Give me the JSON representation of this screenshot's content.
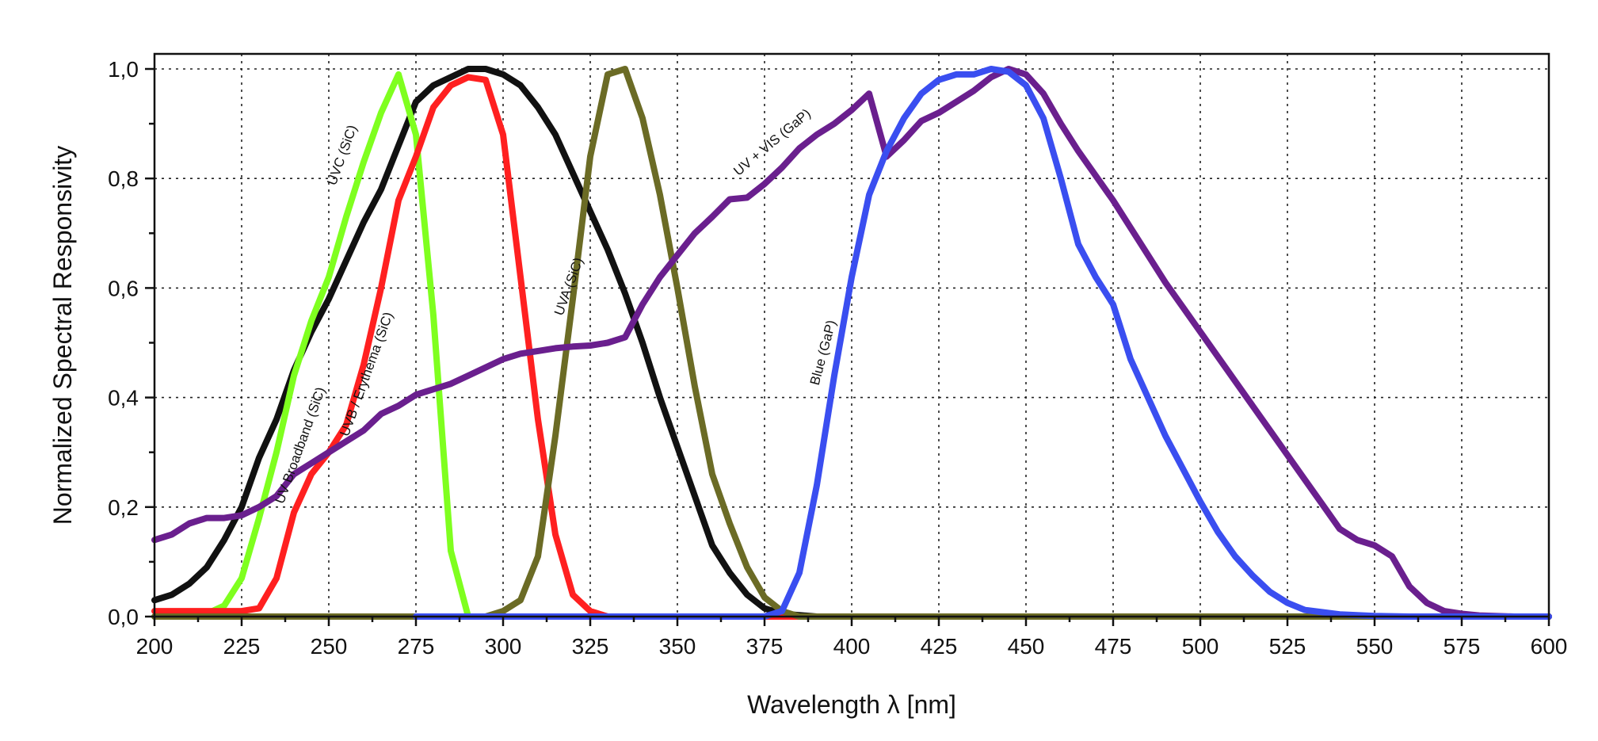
{
  "chart_data": {
    "type": "line",
    "xlabel": "Wavelength λ [nm]",
    "ylabel": "Normalized Spectral Responsivity",
    "xlim": [
      200,
      600
    ],
    "ylim": [
      0,
      1
    ],
    "x_ticks": [
      200,
      225,
      250,
      275,
      300,
      325,
      350,
      375,
      400,
      425,
      450,
      475,
      500,
      525,
      550,
      575,
      600
    ],
    "y_ticks": [
      0,
      0.2,
      0.4,
      0.6,
      0.8,
      1.0
    ],
    "y_tick_labels": [
      "0,0",
      "0,2",
      "0,4",
      "0,6",
      "0,8",
      "1,0"
    ],
    "grid": true,
    "series": [
      {
        "name": "UV Broadband (SiC)",
        "color": "#111111",
        "label_at": [
          243,
          0.31
        ],
        "label_angle": -70,
        "points": [
          [
            200,
            0.03
          ],
          [
            205,
            0.04
          ],
          [
            210,
            0.06
          ],
          [
            215,
            0.09
          ],
          [
            220,
            0.14
          ],
          [
            225,
            0.2
          ],
          [
            230,
            0.29
          ],
          [
            235,
            0.36
          ],
          [
            240,
            0.45
          ],
          [
            245,
            0.52
          ],
          [
            250,
            0.58
          ],
          [
            255,
            0.65
          ],
          [
            260,
            0.72
          ],
          [
            265,
            0.78
          ],
          [
            270,
            0.86
          ],
          [
            275,
            0.94
          ],
          [
            280,
            0.97
          ],
          [
            285,
            0.985
          ],
          [
            290,
            1.0
          ],
          [
            295,
            1.0
          ],
          [
            300,
            0.99
          ],
          [
            305,
            0.97
          ],
          [
            310,
            0.93
          ],
          [
            315,
            0.88
          ],
          [
            320,
            0.81
          ],
          [
            325,
            0.74
          ],
          [
            330,
            0.67
          ],
          [
            335,
            0.59
          ],
          [
            340,
            0.5
          ],
          [
            345,
            0.4
          ],
          [
            350,
            0.31
          ],
          [
            355,
            0.22
          ],
          [
            360,
            0.13
          ],
          [
            365,
            0.08
          ],
          [
            370,
            0.04
          ],
          [
            375,
            0.015
          ],
          [
            380,
            0.005
          ],
          [
            390,
            0.0
          ],
          [
            400,
            0.0
          ],
          [
            600,
            0.0
          ]
        ]
      },
      {
        "name": "UVC (SiC)",
        "color": "#7fff1f",
        "label_at": [
          255,
          0.84
        ],
        "label_angle": -70,
        "points": [
          [
            200,
            0.0
          ],
          [
            210,
            0.0
          ],
          [
            215,
            0.005
          ],
          [
            220,
            0.02
          ],
          [
            225,
            0.07
          ],
          [
            230,
            0.18
          ],
          [
            235,
            0.3
          ],
          [
            240,
            0.44
          ],
          [
            245,
            0.54
          ],
          [
            250,
            0.62
          ],
          [
            255,
            0.73
          ],
          [
            260,
            0.83
          ],
          [
            265,
            0.92
          ],
          [
            270,
            0.99
          ],
          [
            275,
            0.88
          ],
          [
            280,
            0.55
          ],
          [
            285,
            0.12
          ],
          [
            290,
            0.0
          ],
          [
            295,
            0.0
          ],
          [
            600,
            0.0
          ]
        ]
      },
      {
        "name": "UVB / Erythema (SiC)",
        "color": "#ff2020",
        "label_at": [
          262,
          0.44
        ],
        "label_angle": -70,
        "points": [
          [
            200,
            0.01
          ],
          [
            225,
            0.01
          ],
          [
            230,
            0.015
          ],
          [
            235,
            0.07
          ],
          [
            240,
            0.19
          ],
          [
            245,
            0.26
          ],
          [
            250,
            0.3
          ],
          [
            255,
            0.35
          ],
          [
            260,
            0.46
          ],
          [
            265,
            0.6
          ],
          [
            270,
            0.76
          ],
          [
            275,
            0.84
          ],
          [
            280,
            0.93
          ],
          [
            285,
            0.97
          ],
          [
            290,
            0.985
          ],
          [
            295,
            0.98
          ],
          [
            300,
            0.88
          ],
          [
            305,
            0.62
          ],
          [
            310,
            0.36
          ],
          [
            315,
            0.15
          ],
          [
            320,
            0.04
          ],
          [
            325,
            0.01
          ],
          [
            330,
            0.0
          ],
          [
            600,
            0.0
          ]
        ]
      },
      {
        "name": "UVA (SiC)",
        "color": "#6b6b25",
        "label_at": [
          320,
          0.6
        ],
        "label_angle": -70,
        "points": [
          [
            200,
            0.0
          ],
          [
            290,
            0.0
          ],
          [
            295,
            0.0
          ],
          [
            300,
            0.01
          ],
          [
            305,
            0.03
          ],
          [
            310,
            0.11
          ],
          [
            315,
            0.33
          ],
          [
            320,
            0.58
          ],
          [
            325,
            0.84
          ],
          [
            330,
            0.99
          ],
          [
            335,
            1.0
          ],
          [
            340,
            0.91
          ],
          [
            345,
            0.77
          ],
          [
            350,
            0.6
          ],
          [
            355,
            0.42
          ],
          [
            360,
            0.26
          ],
          [
            365,
            0.17
          ],
          [
            370,
            0.09
          ],
          [
            375,
            0.035
          ],
          [
            380,
            0.01
          ],
          [
            385,
            0.0
          ],
          [
            600,
            0.0
          ]
        ]
      },
      {
        "name": "UV + VIS (GaP)",
        "color": "#6a1f8e",
        "label_at": [
          378,
          0.86
        ],
        "label_angle": -40,
        "points": [
          [
            200,
            0.14
          ],
          [
            205,
            0.15
          ],
          [
            210,
            0.17
          ],
          [
            215,
            0.18
          ],
          [
            220,
            0.18
          ],
          [
            225,
            0.185
          ],
          [
            230,
            0.2
          ],
          [
            235,
            0.22
          ],
          [
            240,
            0.26
          ],
          [
            245,
            0.28
          ],
          [
            250,
            0.3
          ],
          [
            255,
            0.32
          ],
          [
            260,
            0.34
          ],
          [
            265,
            0.37
          ],
          [
            270,
            0.385
          ],
          [
            275,
            0.405
          ],
          [
            280,
            0.415
          ],
          [
            285,
            0.425
          ],
          [
            290,
            0.44
          ],
          [
            295,
            0.455
          ],
          [
            300,
            0.47
          ],
          [
            305,
            0.48
          ],
          [
            310,
            0.485
          ],
          [
            315,
            0.49
          ],
          [
            320,
            0.493
          ],
          [
            325,
            0.495
          ],
          [
            330,
            0.5
          ],
          [
            335,
            0.51
          ],
          [
            340,
            0.57
          ],
          [
            345,
            0.62
          ],
          [
            350,
            0.66
          ],
          [
            355,
            0.7
          ],
          [
            360,
            0.73
          ],
          [
            365,
            0.762
          ],
          [
            370,
            0.765
          ],
          [
            375,
            0.79
          ],
          [
            380,
            0.82
          ],
          [
            385,
            0.855
          ],
          [
            390,
            0.88
          ],
          [
            395,
            0.9
          ],
          [
            400,
            0.925
          ],
          [
            405,
            0.955
          ],
          [
            410,
            0.84
          ],
          [
            415,
            0.87
          ],
          [
            420,
            0.905
          ],
          [
            425,
            0.92
          ],
          [
            430,
            0.94
          ],
          [
            435,
            0.96
          ],
          [
            440,
            0.985
          ],
          [
            445,
            1.0
          ],
          [
            450,
            0.99
          ],
          [
            455,
            0.955
          ],
          [
            460,
            0.9
          ],
          [
            465,
            0.85
          ],
          [
            470,
            0.805
          ],
          [
            475,
            0.76
          ],
          [
            480,
            0.71
          ],
          [
            485,
            0.66
          ],
          [
            490,
            0.61
          ],
          [
            495,
            0.565
          ],
          [
            500,
            0.52
          ],
          [
            505,
            0.475
          ],
          [
            510,
            0.43
          ],
          [
            515,
            0.385
          ],
          [
            520,
            0.34
          ],
          [
            525,
            0.295
          ],
          [
            530,
            0.25
          ],
          [
            535,
            0.205
          ],
          [
            540,
            0.16
          ],
          [
            545,
            0.14
          ],
          [
            550,
            0.13
          ],
          [
            555,
            0.11
          ],
          [
            560,
            0.055
          ],
          [
            565,
            0.025
          ],
          [
            570,
            0.01
          ],
          [
            575,
            0.005
          ],
          [
            580,
            0.002
          ],
          [
            590,
            0.0
          ],
          [
            600,
            0.0
          ]
        ]
      },
      {
        "name": "Blue (GaP)",
        "color": "#3a4ef0",
        "label_at": [
          393,
          0.48
        ],
        "label_angle": -75,
        "points": [
          [
            275,
            0.0
          ],
          [
            300,
            0.0
          ],
          [
            325,
            0.0
          ],
          [
            350,
            0.0
          ],
          [
            375,
            0.0
          ],
          [
            380,
            0.01
          ],
          [
            385,
            0.08
          ],
          [
            390,
            0.24
          ],
          [
            395,
            0.44
          ],
          [
            400,
            0.62
          ],
          [
            405,
            0.77
          ],
          [
            410,
            0.85
          ],
          [
            415,
            0.91
          ],
          [
            420,
            0.955
          ],
          [
            425,
            0.98
          ],
          [
            430,
            0.99
          ],
          [
            435,
            0.99
          ],
          [
            440,
            1.0
          ],
          [
            445,
            0.995
          ],
          [
            450,
            0.97
          ],
          [
            455,
            0.91
          ],
          [
            460,
            0.8
          ],
          [
            465,
            0.68
          ],
          [
            470,
            0.62
          ],
          [
            475,
            0.57
          ],
          [
            480,
            0.47
          ],
          [
            485,
            0.4
          ],
          [
            490,
            0.33
          ],
          [
            495,
            0.27
          ],
          [
            500,
            0.21
          ],
          [
            505,
            0.155
          ],
          [
            510,
            0.11
          ],
          [
            515,
            0.075
          ],
          [
            520,
            0.045
          ],
          [
            525,
            0.025
          ],
          [
            530,
            0.012
          ],
          [
            540,
            0.004
          ],
          [
            550,
            0.001
          ],
          [
            560,
            0.0
          ],
          [
            600,
            0.0
          ]
        ]
      }
    ]
  }
}
